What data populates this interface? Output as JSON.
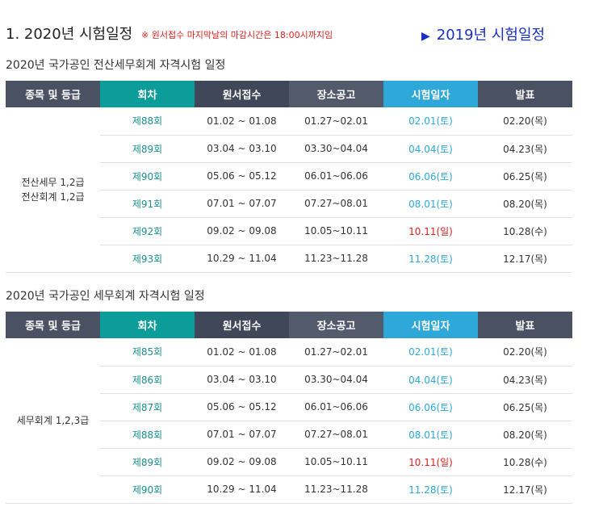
{
  "header": {
    "title": "1. 2020년 시험일정",
    "notice": "※ 원서접수 마지막날의 마감시간은 18:00시까지임",
    "link_2019": "2019년 시험일정"
  },
  "columns": [
    "종목 및 등급",
    "회차",
    "원서접수",
    "장소공고",
    "시험일자",
    "발표"
  ],
  "colors": {
    "round_header": "#0c9c9a",
    "exam_header": "#2ea8d8",
    "sunday": "#e01e1e",
    "dark_header": "#4a5163"
  },
  "tables": [
    {
      "title": "2020년 국가공인 전산세무회계 자격시험 일정",
      "item_line1": "전산세무 1,2급",
      "item_line2": "전산회계 1,2급",
      "rows": [
        {
          "round": "제88회",
          "accept": "01.02 ~ 01.08",
          "notice": "01.27~02.01",
          "exam": "02.01(토)",
          "exam_sunday": false,
          "result": "02.20(목)"
        },
        {
          "round": "제89회",
          "accept": "03.04 ~ 03.10",
          "notice": "03.30~04.04",
          "exam": "04.04(토)",
          "exam_sunday": false,
          "result": "04.23(목)"
        },
        {
          "round": "제90회",
          "accept": "05.06 ~ 05.12",
          "notice": "06.01~06.06",
          "exam": "06.06(토)",
          "exam_sunday": false,
          "result": "06.25(목)"
        },
        {
          "round": "제91회",
          "accept": "07.01 ~ 07.07",
          "notice": "07.27~08.01",
          "exam": "08.01(토)",
          "exam_sunday": false,
          "result": "08.20(목)"
        },
        {
          "round": "제92회",
          "accept": "09.02 ~ 09.08",
          "notice": "10.05~10.11",
          "exam": "10.11(일)",
          "exam_sunday": true,
          "result": "10.28(수)"
        },
        {
          "round": "제93회",
          "accept": "10.29 ~ 11.04",
          "notice": "11.23~11.28",
          "exam": "11.28(토)",
          "exam_sunday": false,
          "result": "12.17(목)"
        }
      ]
    },
    {
      "title": "2020년 국가공인 세무회계 자격시험 일정",
      "item_line1": "세무회계 1,2,3급",
      "item_line2": "",
      "rows": [
        {
          "round": "제85회",
          "accept": "01.02 ~ 01.08",
          "notice": "01.27~02.01",
          "exam": "02.01(토)",
          "exam_sunday": false,
          "result": "02.20(목)"
        },
        {
          "round": "제86회",
          "accept": "03.04 ~ 03.10",
          "notice": "03.30~04.04",
          "exam": "04.04(토)",
          "exam_sunday": false,
          "result": "04.23(목)"
        },
        {
          "round": "제87회",
          "accept": "05.06 ~ 05.12",
          "notice": "06.01~06.06",
          "exam": "06.06(토)",
          "exam_sunday": false,
          "result": "06.25(목)"
        },
        {
          "round": "제88회",
          "accept": "07.01 ~ 07.07",
          "notice": "07.27~08.01",
          "exam": "08.01(토)",
          "exam_sunday": false,
          "result": "08.20(목)"
        },
        {
          "round": "제89회",
          "accept": "09.02 ~ 09.08",
          "notice": "10.05~10.11",
          "exam": "10.11(일)",
          "exam_sunday": true,
          "result": "10.28(수)"
        },
        {
          "round": "제90회",
          "accept": "10.29 ~ 11.04",
          "notice": "11.23~11.28",
          "exam": "11.28(토)",
          "exam_sunday": false,
          "result": "12.17(목)"
        }
      ]
    }
  ]
}
